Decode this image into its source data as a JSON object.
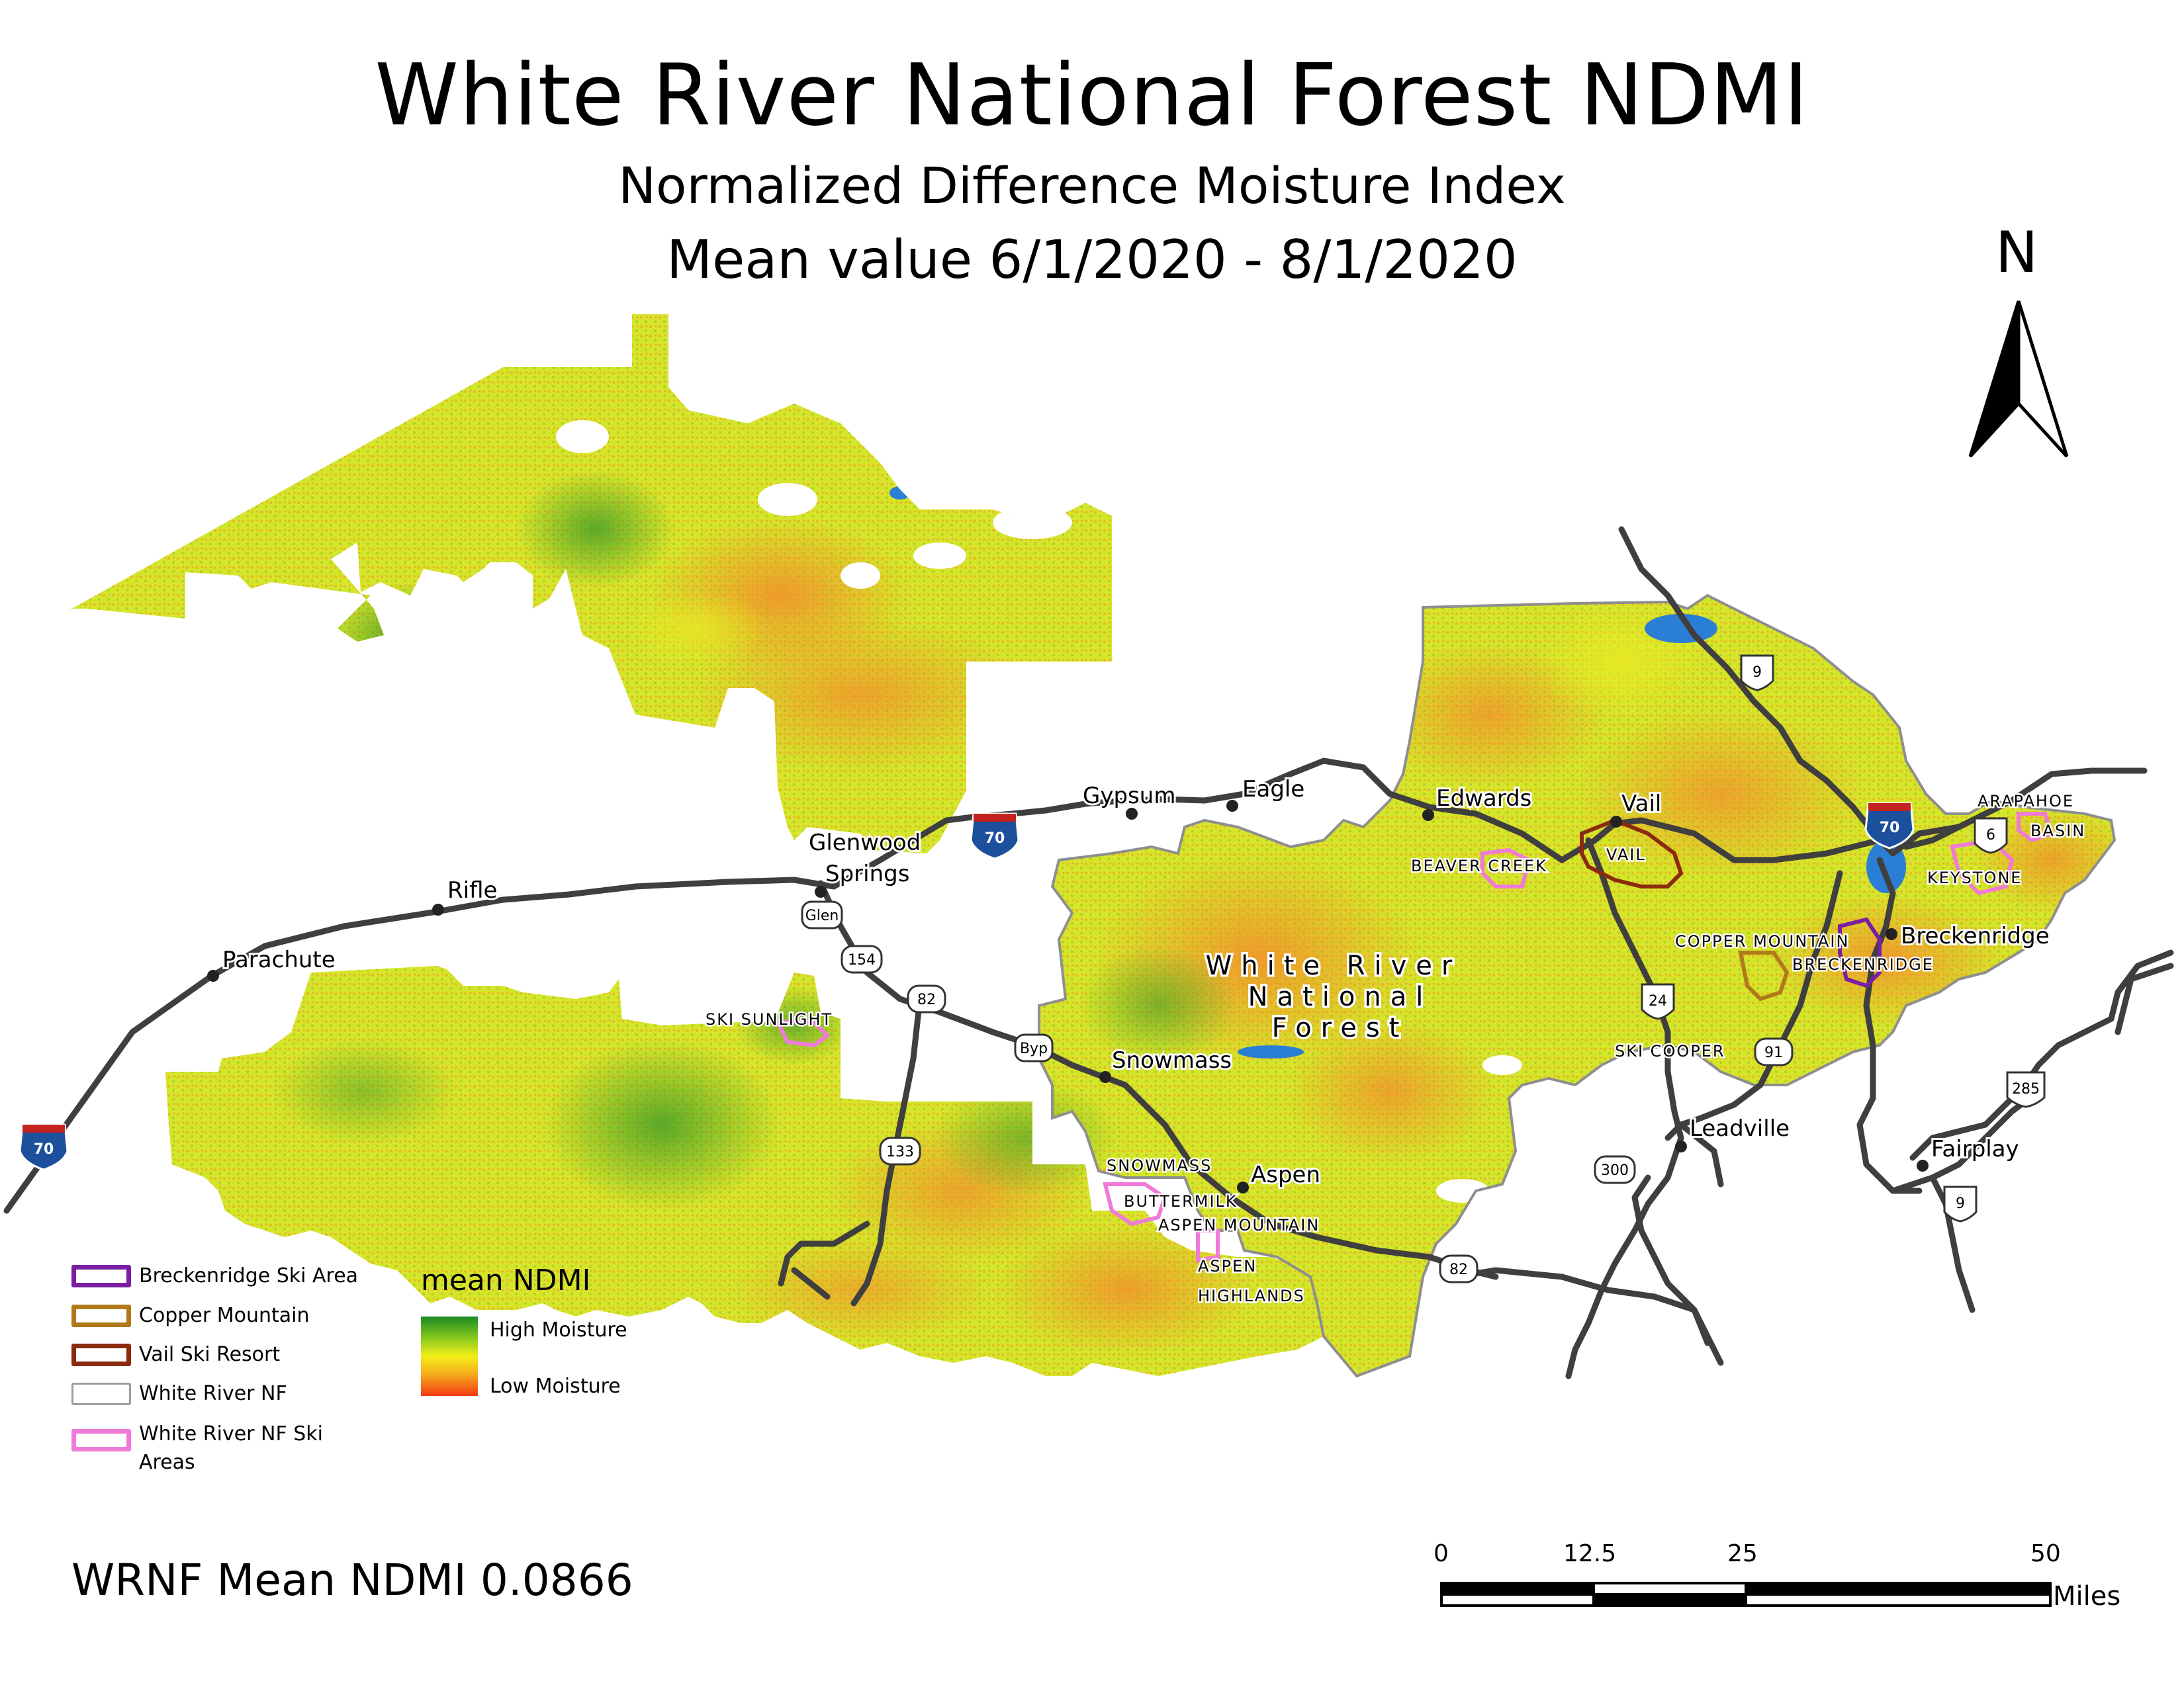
{
  "title": {
    "main": "White River National Forest NDMI",
    "subtitle": "Normalized Difference Moisture Index",
    "date_range": "Mean value 6/1/2020 - 8/1/2020"
  },
  "north_arrow": {
    "label": "N"
  },
  "statistic": "WRNF Mean NDMI 0.0866",
  "towns": {
    "gypsum": "Gypsum",
    "eagle": "Eagle",
    "edwards": "Edwards",
    "vail": "Vail",
    "glenwood_1": "Glenwood",
    "glenwood_2": "Springs",
    "rifle": "Rifle",
    "parachute": "Parachute",
    "snowmass": "Snowmass",
    "aspen": "Aspen",
    "leadville": "Leadville",
    "fairplay": "Fairplay",
    "breckenridge": "Breckenridge"
  },
  "forest_label": [
    "White River",
    "National",
    "Forest"
  ],
  "ski_areas": {
    "ski_sunlight": "SKI SUNLIGHT",
    "beaver_creek": "BEAVER CREEK",
    "vail": "VAIL",
    "copper_mountain": "COPPER MOUNTAIN",
    "breckenridge": "BRECKENRIDGE",
    "arapahoe": "ARAPAHOE",
    "basin": "BASIN",
    "keystone": "KEYSTONE",
    "ski_cooper": "SKI COOPER",
    "snowmass": "SNOWMASS",
    "buttermilk": "BUTTERMILK",
    "aspen_mountain": "ASPEN MOUNTAIN",
    "aspen_highlands_1": "ASPEN",
    "aspen_highlands_2": "HIGHLANDS"
  },
  "road_shields": {
    "i70_a": "70",
    "i70_b": "70",
    "i70_c": "70",
    "us9_a": "9",
    "us6": "6",
    "us24": "24",
    "sh91": "91",
    "us285": "285",
    "us9_b": "9",
    "sh300": "300",
    "sh82_a": "82",
    "sh82_b": "82",
    "sh154": "154",
    "sh133": "133",
    "glen": "Glen",
    "byp": "Byp"
  },
  "legend": {
    "items": [
      {
        "label": "Breckenridge Ski Area",
        "color": "#7b1fa2"
      },
      {
        "label": "Copper Mountain",
        "color": "#b07a1a"
      },
      {
        "label": "Vail Ski Resort",
        "color": "#8b2a0e"
      },
      {
        "label": "White River NF",
        "color": "#9e9e9e"
      },
      {
        "label": "White River NF Ski",
        "label2": "Areas",
        "color": "#f07ad8"
      }
    ],
    "ndmi_title": "mean NDMI",
    "ndmi_high": "High Moisture",
    "ndmi_low": "Low Moisture"
  },
  "scale_bar": {
    "ticks": [
      "0",
      "12.5",
      "25",
      "50"
    ],
    "unit": "Miles"
  },
  "colors": {
    "high_moisture": "#1a8a22",
    "mid": "#f2ef18",
    "low_moisture": "#f23a14",
    "road": "#444444",
    "interstate_shield": "#1c4f9c",
    "water": "#2a7fd4"
  }
}
